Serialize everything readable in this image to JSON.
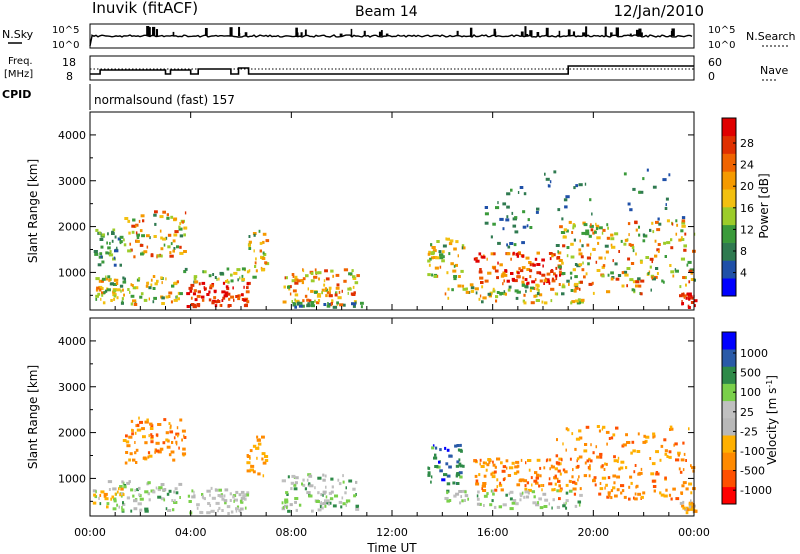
{
  "header": {
    "station": "Inuvik (fitACF)",
    "beam": "Beam 14",
    "date": "12/Jan/2010"
  },
  "top_panels": {
    "nsky_label": "N.Sky",
    "nsky_ticks": [
      "10^5",
      "10^0"
    ],
    "nsearch_label": "N.Search",
    "nsearch_ticks": [
      "10^5",
      "10^0"
    ],
    "freq_label_line1": "Freq.",
    "freq_label_line2": "[MHz]",
    "freq_ticks": [
      "18",
      "8"
    ],
    "nave_label": "Nave",
    "nave_ticks": [
      "60",
      "0"
    ],
    "cpid_label": "CPID",
    "cpid_text": "normalsound (fast) 157"
  },
  "colors": {
    "power": [
      "#0000ff",
      "#1f50a8",
      "#2f7a50",
      "#3a9a3a",
      "#9ccc2a",
      "#f2c010",
      "#f59a00",
      "#f06400",
      "#e03000",
      "#e00000"
    ],
    "velocity": [
      "#ff0000",
      "#ff5000",
      "#ff8a00",
      "#ffb000",
      "#b8b8b8",
      "#c0c0c0",
      "#7ad04a",
      "#2e8a48",
      "#2a5aa8",
      "#0000ff"
    ]
  },
  "chart_data": [
    {
      "type": "heatmap",
      "name": "power",
      "ylabel": "Slant Range [km]",
      "ylim": [
        180,
        4500
      ],
      "yticks": [
        "4000",
        "3000",
        "2000",
        "1000"
      ],
      "ytick_values": [
        4000,
        3000,
        2000,
        1000
      ],
      "xlim_hours": [
        0,
        24
      ],
      "colorbar_label": "Power [dB]",
      "colorbar_ticks": [
        "28",
        "24",
        "20",
        "16",
        "12",
        "8",
        "4"
      ],
      "colorbar_range": [
        0,
        32
      ],
      "grid": false,
      "blobs": [
        {
          "t0": 0.1,
          "t1": 1.3,
          "r0": 300,
          "r1": 900,
          "v0": 8,
          "v1": 24,
          "d": 0.75
        },
        {
          "t0": 0.1,
          "t1": 1.2,
          "r0": 1100,
          "r1": 1900,
          "v0": 4,
          "v1": 16,
          "d": 0.45
        },
        {
          "t0": 1.3,
          "t1": 3.8,
          "r0": 1300,
          "r1": 2300,
          "v0": 8,
          "v1": 28,
          "d": 0.55
        },
        {
          "t0": 1.2,
          "t1": 3.6,
          "r0": 250,
          "r1": 900,
          "v0": 8,
          "v1": 24,
          "d": 0.55
        },
        {
          "t0": 3.8,
          "t1": 6.3,
          "r0": 200,
          "r1": 750,
          "v0": 24,
          "v1": 32,
          "d": 0.85
        },
        {
          "t0": 3.6,
          "t1": 6.5,
          "r0": 750,
          "r1": 1050,
          "v0": 8,
          "v1": 20,
          "d": 0.35
        },
        {
          "t0": 6.2,
          "t1": 7.0,
          "r0": 1000,
          "r1": 1900,
          "v0": 8,
          "v1": 24,
          "d": 0.25
        },
        {
          "t0": 7.6,
          "t1": 10.6,
          "r0": 250,
          "r1": 1050,
          "v0": 12,
          "v1": 28,
          "d": 0.75
        },
        {
          "t0": 8.0,
          "t1": 10.8,
          "r0": 180,
          "r1": 330,
          "v0": 4,
          "v1": 12,
          "d": 0.5
        },
        {
          "t0": 13.4,
          "t1": 14.8,
          "r0": 800,
          "r1": 1700,
          "v0": 8,
          "v1": 24,
          "d": 0.55
        },
        {
          "t0": 15.2,
          "t1": 18.7,
          "r0": 700,
          "r1": 1400,
          "v0": 20,
          "v1": 32,
          "d": 0.8
        },
        {
          "t0": 14.0,
          "t1": 19.5,
          "r0": 300,
          "r1": 700,
          "v0": 8,
          "v1": 24,
          "d": 0.6
        },
        {
          "t0": 15.5,
          "t1": 17.5,
          "r0": 1500,
          "r1": 2800,
          "v0": 4,
          "v1": 12,
          "d": 0.1
        },
        {
          "t0": 18.5,
          "t1": 24.0,
          "r0": 500,
          "r1": 2100,
          "v0": 8,
          "v1": 28,
          "d": 0.5
        },
        {
          "t0": 23.4,
          "t1": 24.0,
          "r0": 180,
          "r1": 500,
          "v0": 24,
          "v1": 32,
          "d": 0.7
        },
        {
          "t0": 17.0,
          "t1": 24.0,
          "r0": 2100,
          "r1": 3200,
          "v0": 4,
          "v1": 10,
          "d": 0.05
        }
      ]
    },
    {
      "type": "heatmap",
      "name": "velocity",
      "ylabel": "Slant Range [km]",
      "ylim": [
        180,
        4500
      ],
      "yticks": [
        "4000",
        "3000",
        "2000",
        "1000"
      ],
      "ytick_values": [
        4000,
        3000,
        2000,
        1000
      ],
      "xlabel": "Time UT",
      "xlim_hours": [
        0,
        24
      ],
      "xticks": [
        "00:00",
        "04:00",
        "08:00",
        "12:00",
        "16:00",
        "20:00",
        "00:00"
      ],
      "xtick_values": [
        0,
        4,
        8,
        12,
        16,
        20,
        24
      ],
      "colorbar_label": "Velocity [m s^-1]",
      "colorbar_ticks": [
        "1000",
        "500",
        "100",
        "25",
        "-25",
        "-100",
        "-500",
        "-1000"
      ],
      "grid": false,
      "blobs": [
        {
          "t0": 0.1,
          "t1": 1.3,
          "r0": 300,
          "r1": 900,
          "v0": 2,
          "v1": 7,
          "d": 0.6
        },
        {
          "t0": 1.3,
          "t1": 3.8,
          "r0": 1300,
          "r1": 2300,
          "v0": 1,
          "v1": 3,
          "d": 0.55
        },
        {
          "t0": 1.2,
          "t1": 3.6,
          "r0": 250,
          "r1": 900,
          "v0": 4,
          "v1": 7,
          "d": 0.55
        },
        {
          "t0": 3.8,
          "t1": 6.3,
          "r0": 200,
          "r1": 750,
          "v0": 4,
          "v1": 6,
          "d": 0.75
        },
        {
          "t0": 6.2,
          "t1": 7.0,
          "r0": 1000,
          "r1": 1900,
          "v0": 2,
          "v1": 3,
          "d": 0.2
        },
        {
          "t0": 7.6,
          "t1": 10.6,
          "r0": 250,
          "r1": 1050,
          "v0": 4,
          "v1": 7,
          "d": 0.7
        },
        {
          "t0": 13.4,
          "t1": 14.8,
          "r0": 800,
          "r1": 1700,
          "v0": 6,
          "v1": 9,
          "d": 0.5
        },
        {
          "t0": 15.2,
          "t1": 18.7,
          "r0": 700,
          "r1": 1400,
          "v0": 1,
          "v1": 3,
          "d": 0.75
        },
        {
          "t0": 14.0,
          "t1": 19.5,
          "r0": 300,
          "r1": 700,
          "v0": 4,
          "v1": 7,
          "d": 0.55
        },
        {
          "t0": 18.5,
          "t1": 24.0,
          "r0": 500,
          "r1": 2100,
          "v0": 1,
          "v1": 3,
          "d": 0.45
        },
        {
          "t0": 23.4,
          "t1": 24.0,
          "r0": 180,
          "r1": 500,
          "v0": 2,
          "v1": 4,
          "d": 0.6
        }
      ]
    }
  ]
}
